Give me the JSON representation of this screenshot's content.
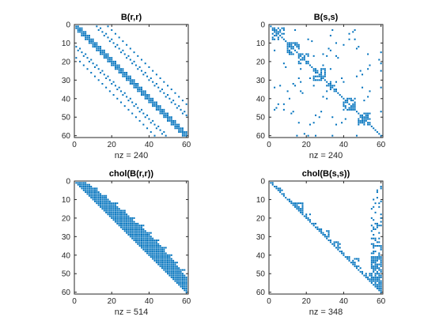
{
  "figure": {
    "background": "#ffffff",
    "marker_color": "#0072bd",
    "axes_color": "#262626"
  },
  "chart_data": [
    {
      "type": "scatter",
      "title": "B(r,r)",
      "xlabel": "nz = 240",
      "xlim": [
        0,
        61
      ],
      "ylim": [
        0,
        61
      ],
      "y_reversed": true,
      "xticks": [
        0,
        20,
        40,
        60
      ],
      "yticks": [
        0,
        10,
        20,
        30,
        40,
        50,
        60
      ],
      "pattern": "bandwidth-6 diagonal band with off-diagonals at offsets 10-12 and 15-17",
      "nz": 240
    },
    {
      "type": "scatter",
      "title": "B(s,s)",
      "xlabel": "nz = 240",
      "xlim": [
        0,
        61
      ],
      "ylim": [
        0,
        61
      ],
      "y_reversed": true,
      "xticks": [
        0,
        20,
        40,
        60
      ],
      "yticks": [
        0,
        10,
        20,
        30,
        40,
        50,
        60
      ],
      "pattern": "main diagonal with local clusters and scattered far off-diagonal entries, symmetric",
      "nz": 240
    },
    {
      "type": "scatter",
      "title": "chol(B(r,r))",
      "xlabel": "nz = 514",
      "xlim": [
        0,
        61
      ],
      "ylim": [
        0,
        61
      ],
      "y_reversed": true,
      "xticks": [
        0,
        20,
        40,
        60
      ],
      "yticks": [
        0,
        10,
        20,
        30,
        40,
        50,
        60
      ],
      "pattern": "upper triangular filled band, width up to ~12",
      "nz": 514
    },
    {
      "type": "scatter",
      "title": "chol(B(s,s))",
      "xlabel": "nz = 348",
      "xlim": [
        0,
        61
      ],
      "ylim": [
        0,
        61
      ],
      "y_reversed": true,
      "xticks": [
        0,
        20,
        40,
        60
      ],
      "yticks": [
        0,
        10,
        20,
        30,
        40,
        50,
        60
      ],
      "pattern": "upper triangular: main diagonal, small local fill, dense block in last columns 55-60",
      "nz": 348
    }
  ]
}
